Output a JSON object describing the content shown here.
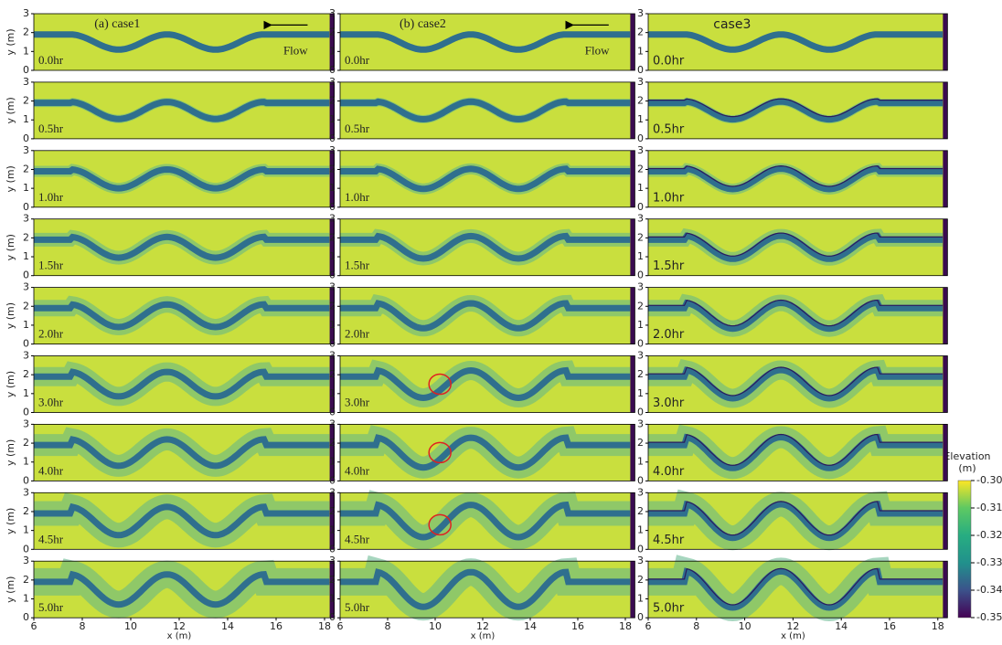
{
  "panels": {
    "columns": [
      "(a) case1",
      "(b) case2",
      "case3"
    ],
    "times": [
      "0.0hr",
      "0.5hr",
      "1.0hr",
      "1.5hr",
      "2.0hr",
      "3.0hr",
      "4.0hr",
      "4.5hr",
      "5.0hr"
    ],
    "flow": "Flow",
    "y_label": "y (m)",
    "x_label": "x (m)",
    "ylim": [
      0,
      3
    ],
    "yticks": [
      0,
      1,
      2,
      3
    ],
    "xlim": [
      6,
      18.4
    ],
    "xticks": [
      6,
      8,
      10,
      12,
      14,
      16,
      18
    ]
  },
  "colorbar": {
    "title": "Elevation",
    "unit": "(m)",
    "lim": [
      -0.35,
      -0.3
    ],
    "ticks": [
      {
        "value": -0.3,
        "label": "-0.30"
      },
      {
        "value": -0.31,
        "label": "-0.31"
      },
      {
        "value": -0.32,
        "label": "-0.32"
      },
      {
        "value": -0.33,
        "label": "-0.33"
      },
      {
        "value": -0.34,
        "label": "-0.34"
      },
      {
        "value": -0.35,
        "label": "-0.35"
      }
    ]
  }
}
